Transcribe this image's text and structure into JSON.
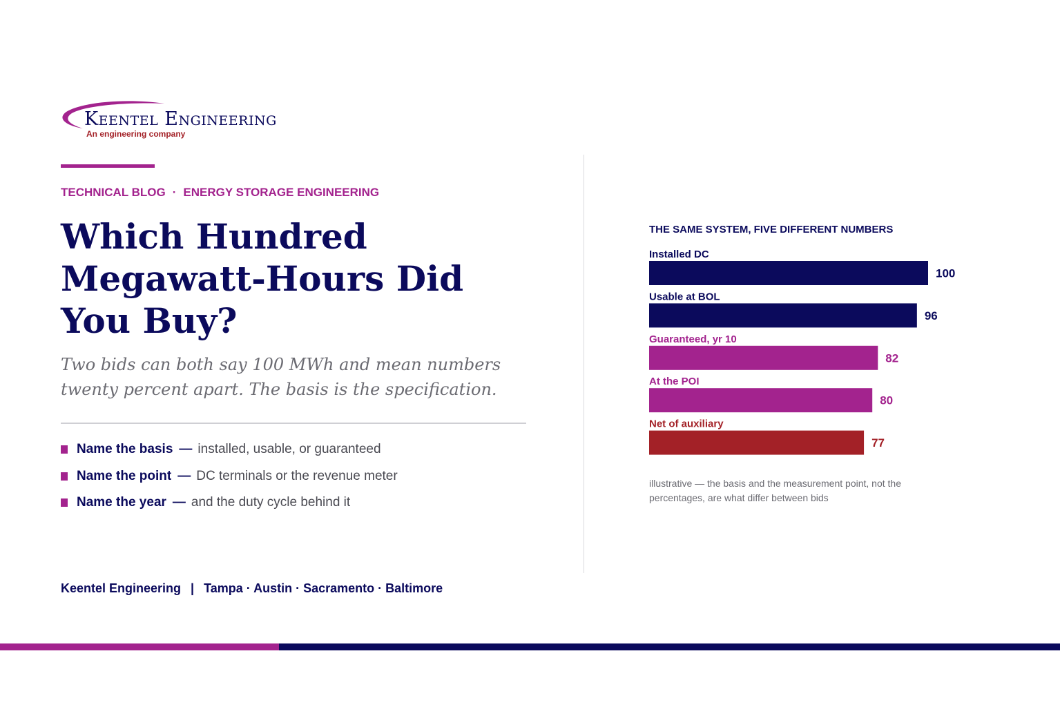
{
  "logo": {
    "name": "Keentel Engineering",
    "tagline": "An engineering company"
  },
  "eyebrow": {
    "category": "TECHNICAL BLOG",
    "separator": "·",
    "topic": "ENERGY STORAGE ENGINEERING"
  },
  "headline": "Which Hundred Megawatt-Hours Did You Buy?",
  "subhead": "Two bids can both say 100 MWh and mean numbers twenty percent apart. The basis is the specification.",
  "points": [
    {
      "lead": "Name the basis",
      "dash": "—",
      "rest": "installed, usable, or guaranteed"
    },
    {
      "lead": "Name the point",
      "dash": "—",
      "rest": "DC terminals or the revenue meter"
    },
    {
      "lead": "Name the year",
      "dash": "—",
      "rest": "and the duty cycle behind it"
    }
  ],
  "footer": {
    "company": "Keentel Engineering",
    "separator": "|",
    "locations": "Tampa · Austin · Sacramento · Baltimore"
  },
  "colors": {
    "navy": "#0b0a5c",
    "magenta": "#a3238e",
    "red": "#a32127",
    "gray_text": "#6b6b72"
  },
  "chart_data": {
    "type": "bar",
    "orientation": "horizontal",
    "title": "THE SAME SYSTEM, FIVE DIFFERENT NUMBERS",
    "categories": [
      "Installed DC",
      "Usable at BOL",
      "Guaranteed, yr 10",
      "At the POI",
      "Net of auxiliary"
    ],
    "values": [
      100,
      96,
      82,
      80,
      77
    ],
    "bar_colors": [
      "#0b0a5c",
      "#0b0a5c",
      "#a3238e",
      "#a3238e",
      "#a32127"
    ],
    "xlim": [
      0,
      100
    ],
    "grid": false,
    "note": "illustrative — the basis and the measurement point, not the percentages, are what differ between bids"
  }
}
